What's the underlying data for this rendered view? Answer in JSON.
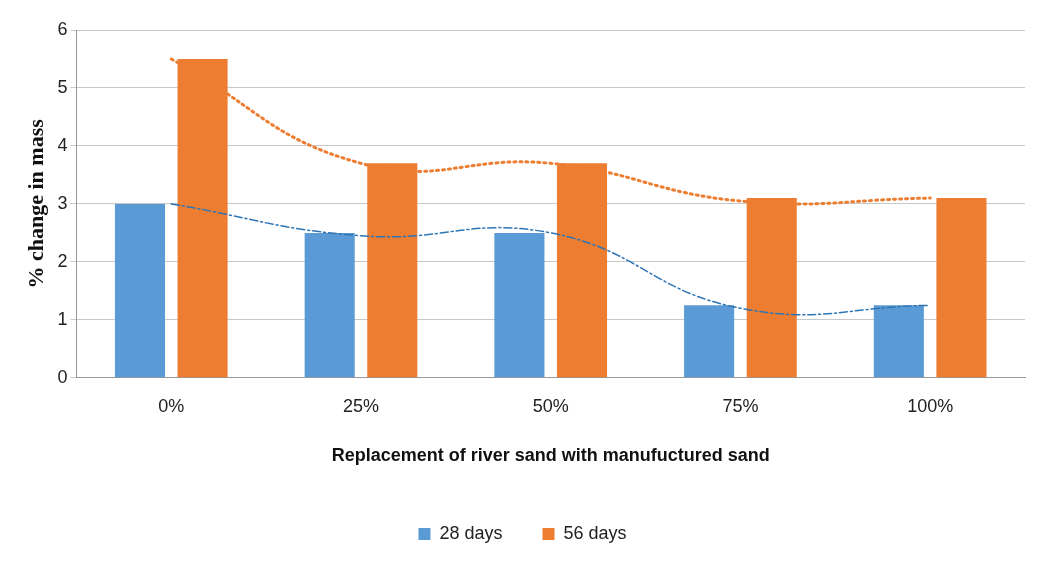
{
  "chart_data": {
    "type": "bar",
    "xlabel": "Replacement of river sand with manufuctured sand",
    "ylabel": "% change in mass",
    "categories": [
      "0%",
      "25%",
      "50%",
      "75%",
      "100%"
    ],
    "series": [
      {
        "name": "28 days",
        "color": "#5b9bd5",
        "values": [
          3,
          2.5,
          2.5,
          1.25,
          1.25
        ]
      },
      {
        "name": "56 days",
        "color": "#ed7d31",
        "values": [
          5.5,
          3.7,
          3.7,
          3.1,
          3.1
        ]
      },
      {
        "type": "line",
        "color": "#2e75b6",
        "line_style": "dashed",
        "values": [
          3,
          2.45,
          2.5,
          1.2,
          1.25
        ]
      },
      {
        "type": "line",
        "color": "#ed7d31",
        "line_style": "dotted",
        "values": [
          5.5,
          3.7,
          3.7,
          3.05,
          3.1
        ]
      }
    ],
    "ylim": [
      0,
      6
    ],
    "yticks": [
      0,
      1,
      2,
      3,
      4,
      5,
      6
    ],
    "grid": "y",
    "legend": "bottom"
  }
}
